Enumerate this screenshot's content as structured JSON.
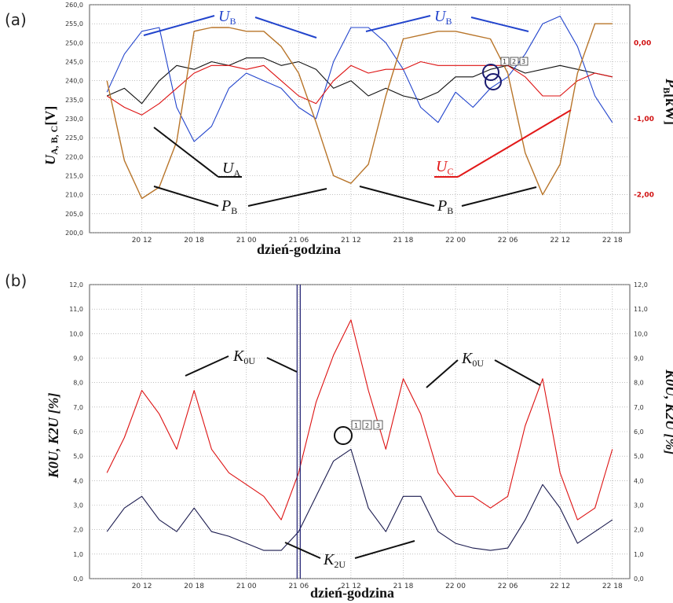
{
  "chart_data": [
    {
      "panel": "(a)",
      "type": "line",
      "xlabel": "dzień-godzina",
      "x_ticks": [
        "20 12",
        "20 18",
        "21 00",
        "21 06",
        "21 12",
        "21 18",
        "22 00",
        "22 06",
        "22 12",
        "22 18"
      ],
      "y_left": {
        "range": [
          200,
          260
        ],
        "ticks": [
          "200,0",
          "205,0",
          "210,0",
          "215,0",
          "220,0",
          "225,0",
          "230,0",
          "235,0",
          "240,0",
          "245,0",
          "250,0",
          "255,0",
          "260,0"
        ],
        "label_main": "U",
        "label_sub": "A, B, C",
        "label_unit": "[V]"
      },
      "y_right": {
        "range": [
          -2.5,
          0.5
        ],
        "ticks": [
          "0,00",
          "-1,00",
          "-2,00"
        ],
        "label_main": "P",
        "label_sub": "B",
        "label_unit": "[kW]"
      },
      "grid": true,
      "series": [
        {
          "name": "UA",
          "axis": "left",
          "color": "#111111",
          "x": [
            8,
            10,
            12,
            14,
            16,
            18,
            20,
            22,
            24,
            26,
            28,
            30,
            32,
            34,
            36,
            38,
            40,
            42,
            44,
            46,
            48,
            50,
            52,
            54,
            56,
            58,
            60,
            62,
            64,
            66
          ],
          "y": [
            236,
            238,
            234,
            240,
            244,
            243,
            245,
            244,
            246,
            246,
            244,
            245,
            243,
            238,
            240,
            236,
            238,
            236,
            235,
            237,
            241,
            241,
            243,
            244,
            242,
            243,
            244,
            243,
            242,
            241
          ]
        },
        {
          "name": "UB",
          "axis": "left",
          "color": "#2244cc",
          "x": [
            8,
            10,
            12,
            14,
            16,
            18,
            20,
            22,
            24,
            26,
            28,
            30,
            32,
            34,
            36,
            38,
            40,
            42,
            44,
            46,
            48,
            50,
            52,
            54,
            56,
            58,
            60,
            62,
            64,
            66
          ],
          "y": [
            237,
            247,
            253,
            254,
            233,
            224,
            228,
            238,
            242,
            240,
            238,
            233,
            230,
            245,
            254,
            254,
            250,
            243,
            233,
            229,
            237,
            233,
            238,
            241,
            247,
            255,
            257,
            249,
            236,
            229
          ]
        },
        {
          "name": "UC",
          "axis": "left",
          "color": "#dd1111",
          "x": [
            8,
            10,
            12,
            14,
            16,
            18,
            20,
            22,
            24,
            26,
            28,
            30,
            32,
            34,
            36,
            38,
            40,
            42,
            44,
            46,
            48,
            50,
            52,
            54,
            56,
            58,
            60,
            62,
            64,
            66
          ],
          "y": [
            236,
            233,
            231,
            234,
            238,
            242,
            244,
            244,
            243,
            244,
            240,
            236,
            234,
            240,
            244,
            242,
            243,
            243,
            245,
            244,
            244,
            244,
            244,
            244,
            241,
            236,
            236,
            240,
            242,
            241
          ]
        },
        {
          "name": "PB",
          "axis": "right",
          "color": "#b8752a",
          "x": [
            8,
            10,
            12,
            14,
            16,
            18,
            20,
            22,
            24,
            26,
            28,
            30,
            32,
            34,
            36,
            38,
            40,
            42,
            44,
            46,
            48,
            50,
            52,
            54,
            56,
            58,
            60,
            62,
            64,
            66
          ],
          "y": [
            -0.5,
            -1.55,
            -2.05,
            -1.9,
            -1.3,
            0.15,
            0.2,
            0.2,
            0.15,
            0.15,
            -0.05,
            -0.4,
            -1.05,
            -1.75,
            -1.85,
            -1.6,
            -0.7,
            0.05,
            0.1,
            0.15,
            0.15,
            0.1,
            0.05,
            -0.4,
            -1.45,
            -2.0,
            -1.6,
            -0.4,
            0.25,
            0.25
          ]
        }
      ],
      "annotations": {
        "UB_left": {
          "main": "U",
          "sub": "B"
        },
        "UB_right": {
          "main": "U",
          "sub": "B"
        },
        "UA": {
          "main": "U",
          "sub": "A"
        },
        "UC": {
          "main": "U",
          "sub": "C"
        },
        "PB_left": {
          "main": "P",
          "sub": "B"
        },
        "PB_right": {
          "main": "P",
          "sub": "B"
        },
        "boxes": [
          "1",
          "2",
          "3"
        ]
      }
    },
    {
      "panel": "(b)",
      "type": "line",
      "xlabel": "dzień-godzina",
      "x_ticks": [
        "20 12",
        "20 18",
        "21 00",
        "21 06",
        "21 12",
        "21 18",
        "22 00",
        "22 06",
        "22 12",
        "22 18"
      ],
      "y_left": {
        "range": [
          0,
          12.5
        ],
        "ticks": [
          "0,0",
          "1,0",
          "2,0",
          "3,0",
          "4,0",
          "5,0",
          "6,0",
          "7,0",
          "8,0",
          "9,0",
          "10,0",
          "11,0",
          "12,0"
        ],
        "label": "K0U, K2U [%]"
      },
      "y_right": {
        "range": [
          0,
          12.5
        ],
        "ticks": [
          "0,0",
          "1,0",
          "2,0",
          "3,0",
          "4,0",
          "5,0",
          "6,0",
          "7,0",
          "8,0",
          "9,0",
          "10,0",
          "11,0",
          "12,0"
        ],
        "label": "K0U, K2U [%]"
      },
      "grid": true,
      "series": [
        {
          "name": "K0U",
          "color": "#dd1111",
          "x": [
            8,
            10,
            12,
            14,
            16,
            18,
            20,
            22,
            24,
            26,
            28,
            30,
            32,
            34,
            36,
            38,
            40,
            42,
            44,
            46,
            48,
            50,
            52,
            54,
            56,
            58,
            60,
            62,
            64,
            66
          ],
          "y": [
            4.5,
            6.0,
            8.0,
            7.0,
            5.5,
            8.0,
            5.5,
            4.5,
            4.0,
            3.5,
            2.5,
            4.5,
            7.5,
            9.5,
            11.0,
            8.0,
            5.5,
            8.5,
            7.0,
            4.5,
            3.5,
            3.5,
            3.0,
            3.5,
            6.5,
            8.5,
            4.5,
            2.5,
            3.0,
            5.5
          ]
        },
        {
          "name": "K2U",
          "color": "#1a1a4e",
          "x": [
            8,
            10,
            12,
            14,
            16,
            18,
            20,
            22,
            24,
            26,
            28,
            30,
            32,
            34,
            36,
            38,
            40,
            42,
            44,
            46,
            48,
            50,
            52,
            54,
            56,
            58,
            60,
            62,
            64,
            66
          ],
          "y": [
            2.0,
            3.0,
            3.5,
            2.5,
            2.0,
            3.0,
            2.0,
            1.8,
            1.5,
            1.2,
            1.2,
            2.0,
            3.5,
            5.0,
            5.5,
            3.0,
            2.0,
            3.5,
            3.5,
            2.0,
            1.5,
            1.3,
            1.2,
            1.3,
            2.5,
            4.0,
            3.0,
            1.5,
            2.0,
            2.5
          ]
        }
      ],
      "annotations": {
        "K0U_left": {
          "main": "K",
          "sub": "0U"
        },
        "K0U_right": {
          "main": "K",
          "sub": "0U"
        },
        "K2U": {
          "main": "K",
          "sub": "2U"
        },
        "boxes": [
          "1",
          "2",
          "3"
        ]
      }
    }
  ]
}
